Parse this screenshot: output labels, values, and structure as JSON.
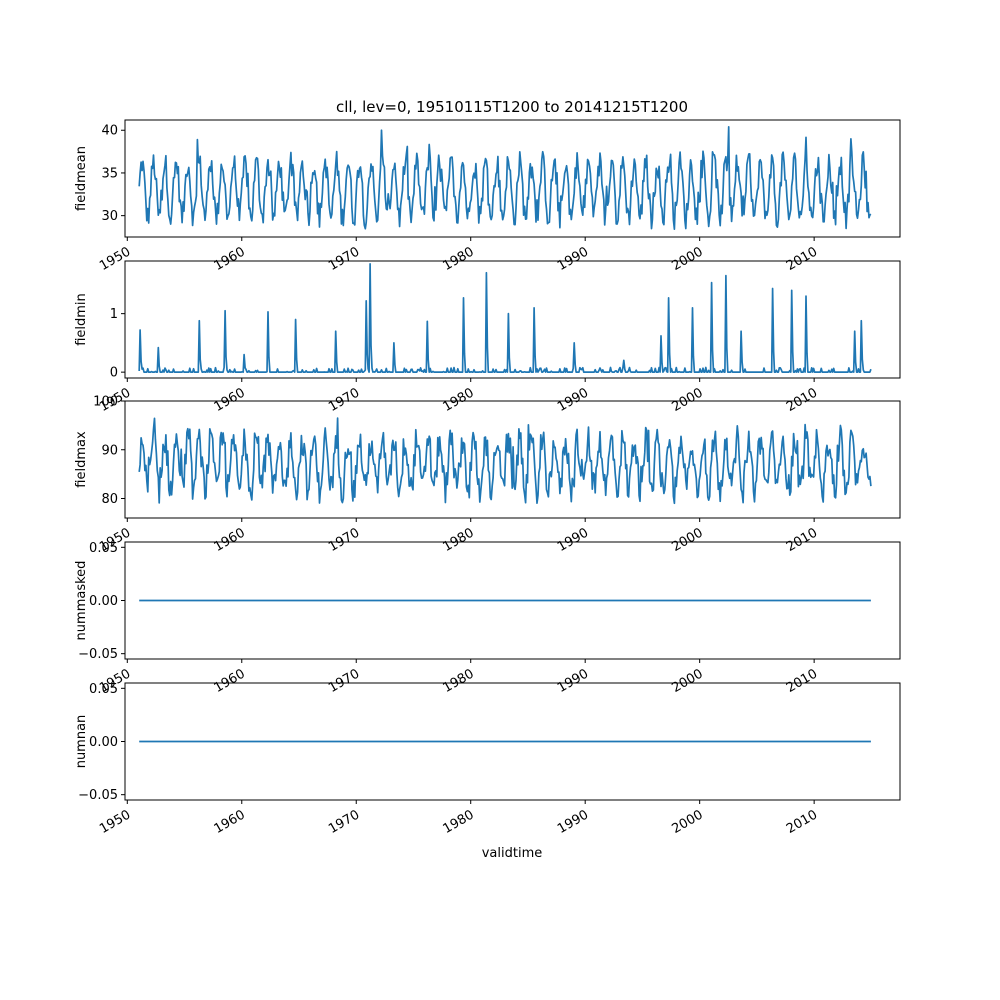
{
  "figure": {
    "title": "cll, lev=0, 19510115T1200 to 20141215T1200",
    "xlabel": "validtime",
    "line_color": "#1f77b4"
  },
  "chart_data": [
    {
      "type": "line",
      "ylabel": "fieldmean",
      "xlim": [
        1949.8,
        2017.5
      ],
      "ylim": [
        27.5,
        41.2
      ],
      "yticks": [
        "30",
        "35",
        "40"
      ],
      "ytick_values": [
        30,
        35,
        40
      ],
      "xticks": [
        "1950",
        "1960",
        "1970",
        "1980",
        "1990",
        "2000",
        "2010"
      ],
      "xtick_values": [
        1950,
        1960,
        1970,
        1980,
        1990,
        2000,
        2010
      ],
      "series": [
        {
          "x_start": 1951.04,
          "x_end": 2014.96,
          "base": 33.0,
          "amplitude": 3.2,
          "noise": 1.4,
          "min": 28.0,
          "max": 40.4,
          "peaks": [
            [
              1972.2,
              40.0
            ],
            [
              2002.5,
              40.4
            ],
            [
              2013.2,
              39.0
            ],
            [
              1956.1,
              38.9
            ]
          ]
        }
      ]
    },
    {
      "type": "line",
      "ylabel": "fieldmin",
      "xlim": [
        1949.8,
        2017.5
      ],
      "ylim": [
        -0.1,
        1.9
      ],
      "yticks": [
        "0",
        "1"
      ],
      "ytick_values": [
        0,
        1
      ],
      "xticks": [
        "1950",
        "1960",
        "1970",
        "1980",
        "1990",
        "2000",
        "2010"
      ],
      "xtick_values": [
        1950,
        1960,
        1970,
        1980,
        1990,
        2000,
        2010
      ],
      "series": [
        {
          "x_start": 1951.04,
          "x_end": 2014.96,
          "base": 0.0,
          "spikes": [
            [
              1951.1,
              0.72
            ],
            [
              1952.7,
              0.42
            ],
            [
              1956.3,
              0.88
            ],
            [
              1958.5,
              1.05
            ],
            [
              1960.2,
              0.3
            ],
            [
              1962.3,
              1.03
            ],
            [
              1964.7,
              0.9
            ],
            [
              1968.2,
              0.7
            ],
            [
              1970.9,
              1.22
            ],
            [
              1971.2,
              1.85
            ],
            [
              1973.3,
              0.5
            ],
            [
              1976.2,
              0.87
            ],
            [
              1979.4,
              1.27
            ],
            [
              1981.4,
              1.7
            ],
            [
              1983.3,
              1.0
            ],
            [
              1985.5,
              1.1
            ],
            [
              1989.0,
              0.5
            ],
            [
              1993.4,
              0.2
            ],
            [
              1996.6,
              0.62
            ],
            [
              1997.3,
              1.27
            ],
            [
              1999.4,
              1.1
            ],
            [
              2001.0,
              1.53
            ],
            [
              2002.3,
              1.65
            ],
            [
              2003.6,
              0.7
            ],
            [
              2006.4,
              1.43
            ],
            [
              2008.0,
              1.4
            ],
            [
              2009.3,
              1.3
            ],
            [
              2013.5,
              0.7
            ],
            [
              2014.1,
              0.88
            ]
          ]
        }
      ]
    },
    {
      "type": "line",
      "ylabel": "fieldmax",
      "xlim": [
        1949.8,
        2017.5
      ],
      "ylim": [
        76.0,
        100.0
      ],
      "yticks": [
        "80",
        "90",
        "100"
      ],
      "ytick_values": [
        80,
        90,
        100
      ],
      "xticks": [
        "1950",
        "1960",
        "1970",
        "1980",
        "1990",
        "2000",
        "2010"
      ],
      "xtick_values": [
        1950,
        1960,
        1970,
        1980,
        1990,
        2000,
        2010
      ],
      "series": [
        {
          "x_start": 1951.04,
          "x_end": 2014.96,
          "base": 87.0,
          "amplitude": 5.0,
          "noise": 3.0,
          "min": 77.5,
          "max": 96.5
        }
      ]
    },
    {
      "type": "line",
      "ylabel": "nummasked",
      "xlim": [
        1949.8,
        2017.5
      ],
      "ylim": [
        -0.055,
        0.055
      ],
      "yticks": [
        "−0.05",
        "0.00",
        "0.05"
      ],
      "ytick_values": [
        -0.05,
        0.0,
        0.05
      ],
      "xticks": [
        "1950",
        "1960",
        "1970",
        "1980",
        "1990",
        "2000",
        "2010"
      ],
      "xtick_values": [
        1950,
        1960,
        1970,
        1980,
        1990,
        2000,
        2010
      ],
      "series": [
        {
          "x_start": 1951.04,
          "x_end": 2014.96,
          "constant": 0.0
        }
      ]
    },
    {
      "type": "line",
      "ylabel": "numnan",
      "xlim": [
        1949.8,
        2017.5
      ],
      "ylim": [
        -0.055,
        0.055
      ],
      "yticks": [
        "−0.05",
        "0.00",
        "0.05"
      ],
      "ytick_values": [
        -0.05,
        0.0,
        0.05
      ],
      "xticks": [
        "1950",
        "1960",
        "1970",
        "1980",
        "1990",
        "2000",
        "2010"
      ],
      "xtick_values": [
        1950,
        1960,
        1970,
        1980,
        1990,
        2000,
        2010
      ],
      "series": [
        {
          "x_start": 1951.04,
          "x_end": 2014.96,
          "constant": 0.0
        }
      ]
    }
  ]
}
